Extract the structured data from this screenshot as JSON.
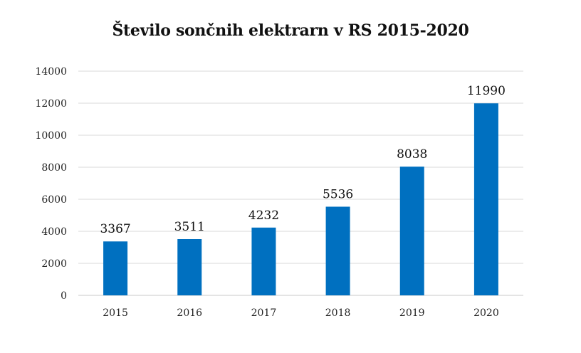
{
  "chart_data": {
    "type": "bar",
    "title": "Število sončnih elektrarn v RS  2015-2020",
    "xlabel": "",
    "ylabel": "",
    "categories": [
      "2015",
      "2016",
      "2017",
      "2018",
      "2019",
      "2020"
    ],
    "values": [
      3367,
      3511,
      4232,
      5536,
      8038,
      11990
    ],
    "data_labels": [
      "3367",
      "3511",
      "4232",
      "5536",
      "8038",
      "11990"
    ],
    "ylim": [
      0,
      14000
    ],
    "yticks": [
      0,
      2000,
      4000,
      6000,
      8000,
      10000,
      12000,
      14000
    ],
    "ytick_labels": [
      "0",
      "2000",
      "4000",
      "6000",
      "8000",
      "10000",
      "12000",
      "14000"
    ],
    "grid": true,
    "legend": "none",
    "bar_color": "#0070C0",
    "grid_color": "#d9d9d9"
  }
}
